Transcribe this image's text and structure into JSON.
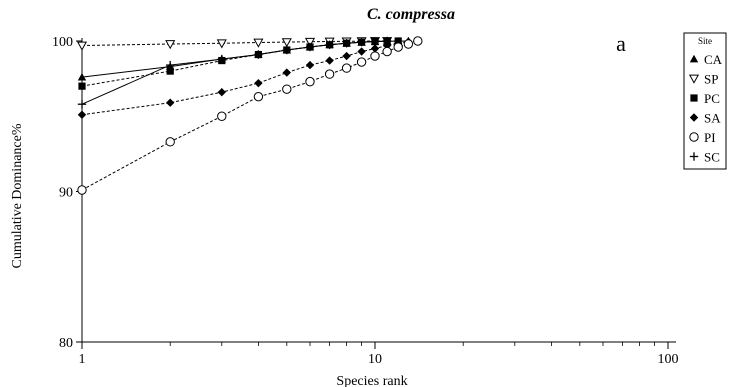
{
  "chart_data": {
    "type": "line",
    "title": "C. compressa",
    "panel_label": "a",
    "xlabel": "Species rank",
    "ylabel": "Cumulative Dominance%",
    "x_scale": "log",
    "xlim": [
      1,
      100
    ],
    "ylim": [
      80,
      100
    ],
    "x_ticks": [
      1,
      10,
      100
    ],
    "x_tick_labels": [
      "1",
      "10",
      "100"
    ],
    "y_ticks": [
      80,
      90,
      100
    ],
    "y_tick_labels": [
      "80",
      "90",
      "100"
    ],
    "grid": false,
    "legend": {
      "title": "Site",
      "placement": "right"
    },
    "series": [
      {
        "name": "CA",
        "marker": "filled-triangle",
        "line": "solid",
        "x": [
          1,
          2,
          3,
          4,
          5,
          6,
          7,
          8,
          9,
          10,
          11,
          12,
          13
        ],
        "y": [
          97.6,
          98.3,
          98.8,
          99.1,
          99.4,
          99.6,
          99.75,
          99.85,
          99.92,
          99.96,
          99.98,
          99.99,
          100
        ]
      },
      {
        "name": "SP",
        "marker": "open-down-triangle",
        "line": "dashed",
        "x": [
          1,
          2,
          3,
          4,
          5,
          6,
          7,
          8,
          9,
          10,
          11
        ],
        "y": [
          99.7,
          99.8,
          99.85,
          99.9,
          99.93,
          99.95,
          99.97,
          99.98,
          99.99,
          100,
          100
        ]
      },
      {
        "name": "PC",
        "marker": "filled-square",
        "line": "dashed",
        "x": [
          1,
          2,
          3,
          4,
          5,
          6,
          7,
          8,
          9,
          10,
          11,
          12
        ],
        "y": [
          97.0,
          98.0,
          98.7,
          99.1,
          99.4,
          99.6,
          99.75,
          99.85,
          99.92,
          99.96,
          99.98,
          100
        ]
      },
      {
        "name": "SA",
        "marker": "filled-diamond",
        "line": "dashed",
        "x": [
          1,
          2,
          3,
          4,
          5,
          6,
          7,
          8,
          9,
          10,
          11,
          12,
          13,
          14
        ],
        "y": [
          95.1,
          95.9,
          96.6,
          97.2,
          97.9,
          98.4,
          98.7,
          99.0,
          99.3,
          99.5,
          99.7,
          99.85,
          99.95,
          100
        ]
      },
      {
        "name": "PI",
        "marker": "open-circle",
        "line": "dashed",
        "x": [
          1,
          2,
          3,
          4,
          5,
          6,
          7,
          8,
          9,
          10,
          11,
          12,
          13,
          14
        ],
        "y": [
          90.1,
          93.3,
          95.0,
          96.3,
          96.8,
          97.3,
          97.8,
          98.2,
          98.6,
          99.0,
          99.3,
          99.6,
          99.8,
          100
        ]
      },
      {
        "name": "SC",
        "marker": "plus",
        "line": "solid",
        "x": [
          1,
          2,
          3,
          4,
          5,
          6,
          7,
          8,
          9,
          10,
          11
        ],
        "y": [
          95.8,
          98.4,
          98.8,
          99.1,
          99.4,
          99.6,
          99.75,
          99.85,
          99.93,
          99.97,
          100
        ]
      }
    ]
  }
}
